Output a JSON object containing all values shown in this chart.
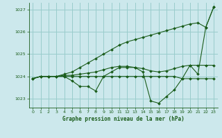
{
  "title": "Graphe pression niveau de la mer (hPa)",
  "bg_color": "#cce8ec",
  "grid_color": "#99cccc",
  "line_color": "#1a5c1a",
  "xlim": [
    -0.5,
    23.5
  ],
  "ylim": [
    1022.6,
    1027.3
  ],
  "yticks": [
    1023,
    1024,
    1025,
    1026,
    1027
  ],
  "xticks": [
    0,
    1,
    2,
    3,
    4,
    5,
    6,
    7,
    8,
    9,
    10,
    11,
    12,
    13,
    14,
    15,
    16,
    17,
    18,
    19,
    20,
    21,
    22,
    23
  ],
  "series": [
    [
      1023.9,
      1024.0,
      1024.0,
      1024.0,
      1024.0,
      1023.8,
      1023.55,
      1023.55,
      1023.35,
      1024.0,
      1024.2,
      1024.4,
      1024.4,
      1024.4,
      1024.2,
      1022.9,
      1022.8,
      1023.1,
      1023.4,
      1023.9,
      1024.5,
      1024.1,
      1026.2,
      1027.1
    ],
    [
      1023.9,
      1024.0,
      1024.0,
      1024.0,
      1024.0,
      1024.0,
      1024.0,
      1024.0,
      1024.0,
      1024.0,
      1024.0,
      1024.0,
      1024.0,
      1024.0,
      1024.0,
      1024.0,
      1024.0,
      1024.0,
      1024.0,
      1023.9,
      1023.9,
      1023.9,
      1023.9,
      1023.9
    ],
    [
      1023.9,
      1024.0,
      1024.0,
      1024.0,
      1024.05,
      1024.05,
      1024.1,
      1024.15,
      1024.2,
      1024.3,
      1024.4,
      1024.45,
      1024.45,
      1024.4,
      1024.35,
      1024.25,
      1024.2,
      1024.25,
      1024.35,
      1024.45,
      1024.5,
      1024.5,
      1024.5,
      1024.5
    ],
    [
      1023.9,
      1024.0,
      1024.0,
      1024.0,
      1024.1,
      1024.2,
      1024.4,
      1024.6,
      1024.8,
      1025.0,
      1025.2,
      1025.4,
      1025.55,
      1025.65,
      1025.75,
      1025.85,
      1025.95,
      1026.05,
      1026.15,
      1026.25,
      1026.35,
      1026.4,
      1026.2,
      1027.1
    ]
  ]
}
